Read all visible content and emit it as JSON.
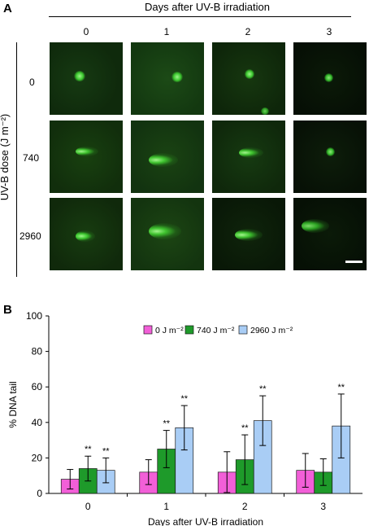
{
  "panel_a": {
    "letter": "A",
    "title": "Days after UV-B irradiation",
    "columns": [
      "0",
      "1",
      "2",
      "3"
    ],
    "row_axis_label": "UV-B dose (J m⁻²)",
    "rows": [
      "0",
      "740",
      "2960"
    ]
  },
  "panel_b": {
    "letter": "B"
  },
  "colors": {
    "series_0": "#f25fd8",
    "series_740": "#1e9a2a",
    "series_2960": "#a9cdf5"
  },
  "chart_data": {
    "type": "bar",
    "title": "",
    "xlabel": "Days after UV-B irradiation",
    "ylabel": "% DNA tail",
    "ylim": [
      0,
      100
    ],
    "yticks": [
      "0",
      "20",
      "40",
      "60",
      "80",
      "100"
    ],
    "categories": [
      "0",
      "1",
      "2",
      "3"
    ],
    "legend_position": "top-center",
    "grid": false,
    "series": [
      {
        "name": "0 J m⁻²",
        "values": [
          8,
          12,
          12,
          13
        ],
        "errors": [
          5.5,
          7,
          11.5,
          9.5
        ],
        "sig": [
          "",
          "",
          "",
          ""
        ]
      },
      {
        "name": "740 J m⁻²",
        "values": [
          14,
          25,
          19,
          12
        ],
        "errors": [
          7,
          10.5,
          14,
          7.5
        ],
        "sig": [
          "**",
          "**",
          "**",
          ""
        ]
      },
      {
        "name": "2960 J m⁻²",
        "values": [
          13,
          37,
          41,
          38
        ],
        "errors": [
          7,
          12.5,
          14,
          18
        ],
        "sig": [
          "**",
          "**",
          "**",
          "**"
        ]
      }
    ]
  }
}
